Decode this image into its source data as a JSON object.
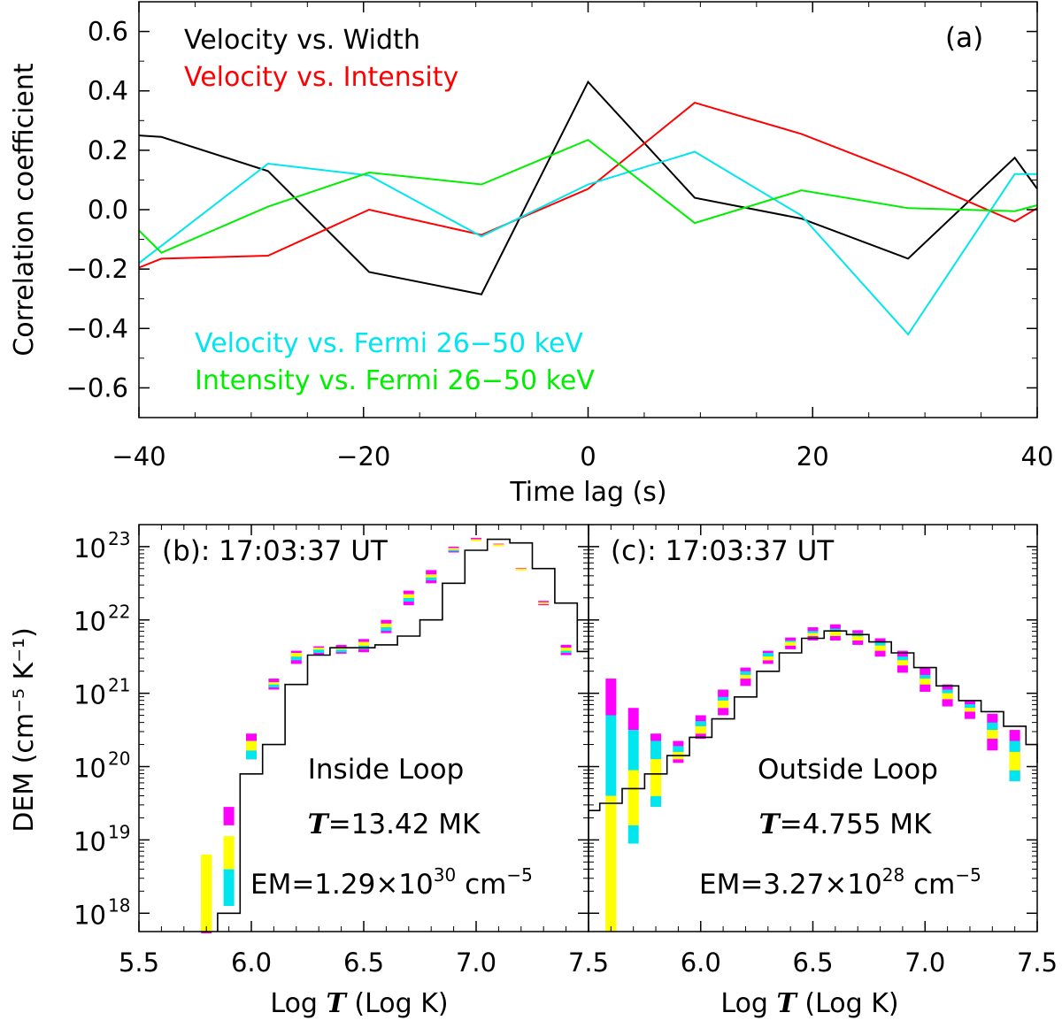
{
  "chart_data": [
    {
      "id": "a",
      "type": "line",
      "panel_label": "(a)",
      "xlabel": "Time lag (s)",
      "ylabel": "Correlation coefficient",
      "xlim": [
        -40,
        40
      ],
      "ylim": [
        -0.7,
        0.7
      ],
      "xticks": [
        -40,
        -20,
        0,
        20,
        40
      ],
      "xtick_labels": [
        "−40",
        "−20",
        "0",
        "20",
        "40"
      ],
      "yticks": [
        -0.6,
        -0.4,
        -0.2,
        0.0,
        0.2,
        0.4,
        0.6
      ],
      "ytick_labels": [
        "−0.6",
        "−0.4",
        "−0.2",
        "0.0",
        "0.2",
        "0.4",
        "0.6"
      ],
      "series": [
        {
          "name": "Velocity vs. Width",
          "color": "#000000",
          "x": [
            -40,
            -38,
            -28.5,
            -19.5,
            -9.5,
            0,
            9.5,
            19,
            28.5,
            38,
            40
          ],
          "values": [
            0.25,
            0.245,
            0.13,
            -0.21,
            -0.285,
            0.43,
            0.04,
            -0.03,
            -0.165,
            0.175,
            0.07
          ]
        },
        {
          "name": "Velocity vs. Intensity",
          "color": "#ff0000",
          "x": [
            -40,
            -38,
            -28.5,
            -19.5,
            -9.5,
            0,
            9.5,
            19,
            28.5,
            38,
            40
          ],
          "values": [
            -0.195,
            -0.165,
            -0.155,
            0.0,
            -0.085,
            0.07,
            0.36,
            0.255,
            0.115,
            -0.04,
            0.005
          ]
        },
        {
          "name": "Velocity vs. Fermi 26−50 keV",
          "color": "#00e5ee",
          "x": [
            -40,
            -28.5,
            -19.5,
            -9.5,
            0,
            9.5,
            19,
            28.5,
            38,
            40
          ],
          "values": [
            -0.18,
            0.155,
            0.115,
            -0.09,
            0.085,
            0.195,
            -0.02,
            -0.42,
            0.12,
            0.12
          ]
        },
        {
          "name": "Intensity vs. Fermi 26−50 keV",
          "color": "#00ee00",
          "x": [
            -40,
            -38,
            -28.5,
            -19.5,
            -9.5,
            0,
            9.5,
            19,
            28.5,
            38,
            40
          ],
          "values": [
            -0.07,
            -0.145,
            0.01,
            0.125,
            0.085,
            0.235,
            -0.045,
            0.065,
            0.005,
            -0.005,
            0.015
          ]
        }
      ]
    },
    {
      "id": "b",
      "type": "line",
      "title": "(b): 17:03:37 UT",
      "xlabel_prefix": "Log ",
      "xlabel_var": "T",
      "xlabel_suffix": " (Log K)",
      "ylabel": "DEM (cm⁻⁵ K⁻¹)",
      "yscale": "log",
      "xlim": [
        5.5,
        7.5
      ],
      "ylim_log10": [
        17.75,
        23.3
      ],
      "xticks": [
        5.5,
        6.0,
        6.5,
        7.0,
        7.5
      ],
      "xtick_labels": [
        "5.5",
        "6.0",
        "6.5",
        "7.0",
        "7.5"
      ],
      "ytick_exponents": [
        "18",
        "19",
        "20",
        "21",
        "22",
        "23"
      ],
      "annotation": {
        "region": "Inside Loop",
        "t_var": "T",
        "t_value": "=13.42 MK",
        "em_prefix": "EM=1.29×10",
        "em_exp": "30",
        "em_unit": " cm",
        "em_unit_exp": "−5"
      },
      "step_bins": [
        5.85,
        5.95,
        6.05,
        6.15,
        6.25,
        6.35,
        6.45,
        6.55,
        6.65,
        6.75,
        6.85,
        6.95,
        7.05,
        7.15,
        7.25,
        7.35,
        7.45,
        7.5
      ],
      "step_log_dem": [
        18.0,
        19.9,
        20.3,
        21.12,
        21.52,
        21.62,
        21.62,
        21.66,
        21.78,
        22.0,
        22.5,
        22.95,
        23.1,
        23.05,
        22.7,
        22.23,
        21.57,
        20.8
      ],
      "error_bars": [
        {
          "x": 5.8,
          "y": [
            18.8,
            17.55
          ],
          "m": [
            17.7,
            17.55
          ]
        },
        {
          "x": 5.9,
          "y": [
            19.05,
            18.6
          ],
          "c": [
            18.6,
            18.1
          ],
          "m": [
            19.45,
            19.2
          ]
        },
        {
          "x": 6.0,
          "y": [
            20.35,
            20.22
          ],
          "c": [
            20.22,
            20.1
          ],
          "m": [
            20.45,
            20.1
          ]
        },
        {
          "x": 6.1,
          "y": [
            21.15,
            21.12
          ],
          "c": [
            21.12,
            21.08
          ],
          "m": [
            21.2,
            21.05
          ]
        },
        {
          "x": 6.2,
          "y": [
            21.55,
            21.5
          ],
          "c": [
            21.5,
            21.45
          ],
          "m": [
            21.58,
            21.4
          ]
        },
        {
          "x": 6.3,
          "y": [
            21.62,
            21.6
          ],
          "c": [
            21.6,
            21.55
          ],
          "m": [
            21.64,
            21.52
          ]
        },
        {
          "x": 6.4,
          "y": [
            21.62,
            21.6
          ],
          "c": [
            21.6,
            21.56
          ],
          "m": [
            21.66,
            21.54
          ]
        },
        {
          "x": 6.5,
          "y": [
            21.7,
            21.65
          ],
          "c": [
            21.65,
            21.6
          ],
          "m": [
            21.74,
            21.56
          ]
        },
        {
          "x": 6.6,
          "y": [
            21.95,
            21.9
          ],
          "c": [
            21.9,
            21.85
          ],
          "m": [
            22.0,
            21.82
          ]
        },
        {
          "x": 6.7,
          "y": [
            22.35,
            22.3
          ],
          "c": [
            22.3,
            22.25
          ],
          "m": [
            22.4,
            22.2
          ]
        },
        {
          "x": 6.8,
          "y": [
            22.62,
            22.58
          ],
          "c": [
            22.58,
            22.54
          ],
          "m": [
            22.68,
            22.5
          ]
        },
        {
          "x": 6.9,
          "y": [
            22.98,
            22.96
          ],
          "c": [
            22.96,
            22.94
          ],
          "m": [
            23.0,
            22.92
          ]
        },
        {
          "x": 7.0,
          "y": [
            23.1,
            23.09
          ],
          "m": [
            23.12,
            23.08
          ]
        },
        {
          "x": 7.1,
          "y": [
            23.03,
            23.02
          ],
          "m": [
            23.04,
            23.02
          ]
        },
        {
          "x": 7.2,
          "y": [
            22.7,
            22.69
          ],
          "m": [
            22.71,
            22.69
          ]
        },
        {
          "x": 7.3,
          "y": [
            22.24,
            22.22
          ],
          "m": [
            22.26,
            22.2
          ]
        },
        {
          "x": 7.4,
          "y": [
            21.62,
            21.58
          ],
          "c": [
            21.58,
            21.55
          ],
          "m": [
            21.66,
            21.52
          ]
        }
      ]
    },
    {
      "id": "c",
      "type": "line",
      "title": "(c): 17:03:37 UT",
      "xlabel_prefix": "Log ",
      "xlabel_var": "T",
      "xlabel_suffix": " (Log K)",
      "yscale": "log",
      "xlim": [
        5.5,
        7.5
      ],
      "ylim_log10": [
        17.75,
        23.3
      ],
      "xticks": [
        6.0,
        6.5,
        7.0,
        7.5
      ],
      "xtick_labels": [
        "6.0",
        "6.5",
        "7.0",
        "7.5"
      ],
      "annotation": {
        "region": "Outside Loop",
        "t_var": "T",
        "t_value": "=4.755 MK",
        "em_prefix": "EM=3.27×10",
        "em_exp": "28",
        "em_unit": " cm",
        "em_unit_exp": "−5"
      },
      "step_bins": [
        5.5,
        5.55,
        5.65,
        5.75,
        5.85,
        5.95,
        6.05,
        6.15,
        6.25,
        6.35,
        6.45,
        6.55,
        6.65,
        6.75,
        6.85,
        6.95,
        7.05,
        7.15,
        7.25,
        7.35,
        7.45,
        7.5
      ],
      "step_log_dem": [
        19.4,
        19.5,
        19.7,
        19.9,
        20.15,
        20.4,
        20.65,
        20.95,
        21.3,
        21.55,
        21.75,
        21.85,
        21.8,
        21.7,
        21.55,
        21.35,
        21.1,
        20.9,
        20.75,
        20.55,
        20.3,
        20.05
      ],
      "error_bars": [
        {
          "x": 5.6,
          "y": [
            19.6,
            17.55
          ],
          "c": [
            20.7,
            19.6
          ],
          "m": [
            21.2,
            20.7
          ]
        },
        {
          "x": 5.7,
          "y": [
            19.95,
            19.2
          ],
          "c": [
            20.5,
            19.95
          ],
          "c2": [
            19.2,
            18.95
          ],
          "m": [
            20.8,
            20.5
          ]
        },
        {
          "x": 5.8,
          "y": [
            20.1,
            19.6
          ],
          "c": [
            20.35,
            20.1
          ],
          "c2": [
            19.6,
            19.45
          ],
          "m": [
            20.45,
            20.35
          ]
        },
        {
          "x": 5.9,
          "y": [
            20.2,
            20.1
          ],
          "c": [
            20.28,
            20.2
          ],
          "m": [
            20.35,
            20.05
          ]
        },
        {
          "x": 6.0,
          "y": [
            20.55,
            20.45
          ],
          "c": [
            20.62,
            20.55
          ],
          "m": [
            20.7,
            20.38
          ]
        },
        {
          "x": 6.1,
          "y": [
            20.9,
            20.8
          ],
          "c": [
            20.95,
            20.9
          ],
          "m": [
            21.05,
            20.7
          ]
        },
        {
          "x": 6.2,
          "y": [
            21.25,
            21.2
          ],
          "c": [
            21.3,
            21.25
          ],
          "m": [
            21.35,
            21.1
          ]
        },
        {
          "x": 6.3,
          "y": [
            21.5,
            21.45
          ],
          "c": [
            21.55,
            21.5
          ],
          "m": [
            21.58,
            21.4
          ]
        },
        {
          "x": 6.4,
          "y": [
            21.7,
            21.65
          ],
          "c": [
            21.72,
            21.7
          ],
          "m": [
            21.76,
            21.6
          ]
        },
        {
          "x": 6.5,
          "y": [
            21.82,
            21.78
          ],
          "c": [
            21.85,
            21.82
          ],
          "m": [
            21.9,
            21.72
          ]
        },
        {
          "x": 6.6,
          "y": [
            21.85,
            21.78
          ],
          "c": [
            21.88,
            21.85
          ],
          "m": [
            21.94,
            21.72
          ]
        },
        {
          "x": 6.7,
          "y": [
            21.78,
            21.72
          ],
          "c": [
            21.82,
            21.78
          ],
          "m": [
            21.86,
            21.66
          ]
        },
        {
          "x": 6.8,
          "y": [
            21.65,
            21.58
          ],
          "c": [
            21.7,
            21.65
          ],
          "m": [
            21.75,
            21.5
          ]
        },
        {
          "x": 6.9,
          "y": [
            21.45,
            21.38
          ],
          "c": [
            21.5,
            21.45
          ],
          "m": [
            21.58,
            21.28
          ]
        },
        {
          "x": 7.0,
          "y": [
            21.2,
            21.12
          ],
          "c": [
            21.25,
            21.2
          ],
          "m": [
            21.35,
            21.02
          ]
        },
        {
          "x": 7.1,
          "y": [
            21.0,
            20.92
          ],
          "c": [
            21.05,
            21.0
          ],
          "m": [
            21.12,
            20.82
          ]
        },
        {
          "x": 7.2,
          "y": [
            20.8,
            20.75
          ],
          "c": [
            20.85,
            20.8
          ],
          "m": [
            20.9,
            20.65
          ]
        },
        {
          "x": 7.3,
          "y": [
            20.5,
            20.38
          ],
          "c": [
            20.6,
            20.5
          ],
          "m": [
            20.72,
            20.22
          ]
        },
        {
          "x": 7.4,
          "y": [
            20.2,
            19.95
          ],
          "c": [
            20.35,
            20.2
          ],
          "c2": [
            19.95,
            19.8
          ],
          "m": [
            20.5,
            19.8
          ]
        }
      ]
    }
  ]
}
